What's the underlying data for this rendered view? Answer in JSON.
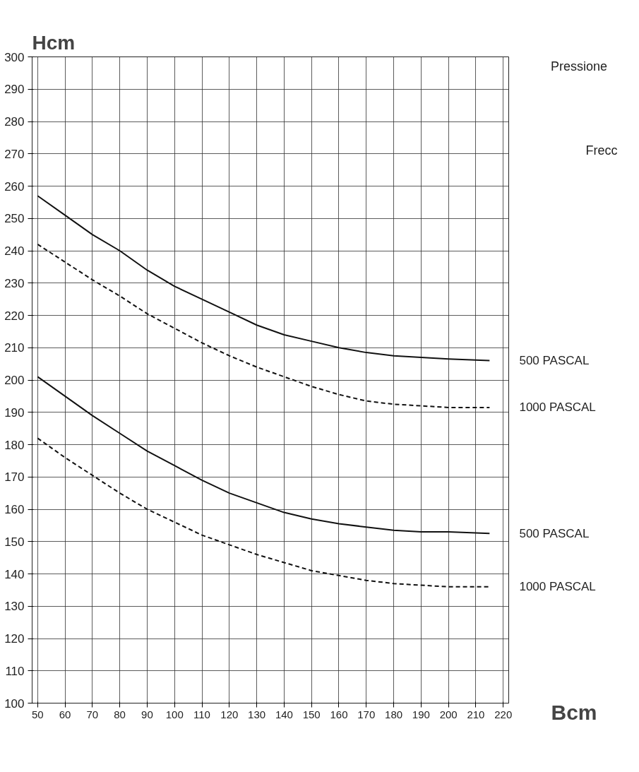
{
  "chart_data": {
    "type": "line",
    "xlabel": "Bcm",
    "ylabel": "Hcm",
    "x": [
      50,
      60,
      70,
      80,
      90,
      100,
      110,
      120,
      130,
      140,
      150,
      160,
      170,
      180,
      190,
      200,
      215
    ],
    "series": [
      {
        "name": "500 PASCAL",
        "color": "#111111",
        "line_style": "solid",
        "values": [
          257,
          251,
          245,
          240,
          234,
          229,
          225,
          221,
          217,
          214,
          212,
          210,
          208.5,
          207.5,
          207,
          206.5,
          206
        ]
      },
      {
        "name": "1000 PASCAL",
        "color": "#111111",
        "line_style": "dashed",
        "values": [
          242,
          236.5,
          231,
          226,
          220.5,
          216,
          211.5,
          207.5,
          204,
          201,
          198,
          195.5,
          193.5,
          192.5,
          192,
          191.5,
          191.5
        ]
      },
      {
        "name": "500 PASCAL",
        "color": "#111111",
        "line_style": "solid",
        "values": [
          201,
          195,
          189,
          183.5,
          178,
          173.5,
          169,
          165,
          162,
          159,
          157,
          155.5,
          154.5,
          153.5,
          153,
          153,
          152.5
        ]
      },
      {
        "name": "1000 PASCAL",
        "color": "#111111",
        "line_style": "dashed",
        "values": [
          182,
          176,
          170.5,
          165,
          160,
          156,
          152,
          149,
          146,
          143.5,
          141,
          139.5,
          138,
          137,
          136.5,
          136,
          136
        ]
      }
    ],
    "xlim": [
      48,
      222
    ],
    "ylim": [
      100,
      300
    ],
    "xticks": [
      50,
      60,
      70,
      80,
      90,
      100,
      110,
      120,
      130,
      140,
      150,
      160,
      170,
      180,
      190,
      200,
      210,
      220
    ],
    "yticks": [
      100,
      110,
      120,
      130,
      140,
      150,
      160,
      170,
      180,
      190,
      200,
      210,
      220,
      230,
      240,
      250,
      260,
      270,
      280,
      290,
      300
    ],
    "grid": true,
    "marker": "none",
    "annotations": [
      "Pressione",
      "Frecc"
    ]
  }
}
